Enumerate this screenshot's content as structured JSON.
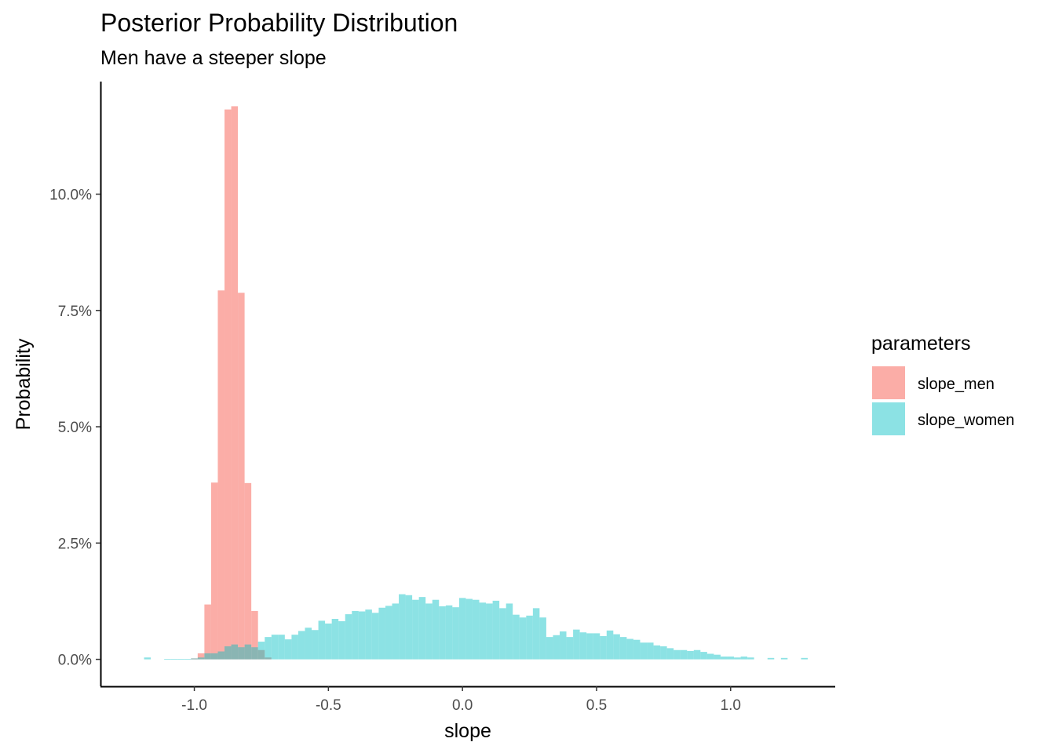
{
  "chart_data": {
    "type": "histogram",
    "title": "Posterior Probability Distribution",
    "subtitle": "Men have a steeper slope",
    "xlabel": "slope",
    "ylabel": "Probability",
    "xlim": [
      -1.35,
      1.39
    ],
    "ylim": [
      -0.0058,
      0.1242
    ],
    "x_ticks": [
      -1.0,
      -0.5,
      0.0,
      0.5,
      1.0
    ],
    "x_tick_labels": [
      "-1.0",
      "-0.5",
      "0.0",
      "0.5",
      "1.0"
    ],
    "y_ticks": [
      0.0,
      0.025,
      0.05,
      0.075,
      0.1
    ],
    "y_tick_labels": [
      "0.0%",
      "2.5%",
      "5.0%",
      "7.5%",
      "10.0%"
    ],
    "grid": false,
    "legend": {
      "title": "parameters",
      "position": "right",
      "items": [
        {
          "label": "slope_men",
          "color": "#F8766D"
        },
        {
          "label": "slope_women",
          "color": "#00BFC4"
        }
      ]
    },
    "series": [
      {
        "name": "slope_men",
        "color": "#F8766D",
        "bin_width": 0.0249,
        "x": [
          -1.0,
          -0.975,
          -0.95,
          -0.925,
          -0.9,
          -0.875,
          -0.85,
          -0.825,
          -0.8,
          -0.775,
          -0.75,
          -0.725
        ],
        "values": [
          0.0002,
          0.0013,
          0.0118,
          0.038,
          0.0793,
          0.1182,
          0.1189,
          0.0788,
          0.0379,
          0.0104,
          0.002,
          0.0004
        ]
      },
      {
        "name": "slope_women",
        "color": "#00BFC4",
        "bin_width": 0.0249,
        "x": [
          -1.2,
          -1.175,
          -1.15,
          -1.125,
          -1.1,
          -1.075,
          -1.05,
          -1.025,
          -1.0,
          -0.975,
          -0.95,
          -0.925,
          -0.9,
          -0.875,
          -0.85,
          -0.825,
          -0.8,
          -0.775,
          -0.75,
          -0.725,
          -0.7,
          -0.675,
          -0.65,
          -0.625,
          -0.6,
          -0.575,
          -0.55,
          -0.525,
          -0.5,
          -0.475,
          -0.45,
          -0.425,
          -0.4,
          -0.375,
          -0.35,
          -0.325,
          -0.3,
          -0.275,
          -0.25,
          -0.225,
          -0.2,
          -0.175,
          -0.15,
          -0.125,
          -0.1,
          -0.075,
          -0.05,
          -0.025,
          0.0,
          0.025,
          0.05,
          0.075,
          0.1,
          0.125,
          0.15,
          0.175,
          0.2,
          0.225,
          0.25,
          0.275,
          0.3,
          0.325,
          0.35,
          0.375,
          0.4,
          0.425,
          0.45,
          0.475,
          0.5,
          0.525,
          0.55,
          0.575,
          0.6,
          0.625,
          0.65,
          0.675,
          0.7,
          0.725,
          0.75,
          0.775,
          0.8,
          0.825,
          0.85,
          0.875,
          0.9,
          0.925,
          0.95,
          0.975,
          1.0,
          1.025,
          1.05,
          1.075,
          1.1,
          1.125,
          1.15,
          1.175,
          1.2,
          1.225,
          1.25,
          1.275
        ],
        "values": [
          0.0,
          0.0004,
          0.0,
          0.0,
          0.0001,
          0.0001,
          0.0001,
          0.0001,
          0.0002,
          0.0004,
          0.0013,
          0.0013,
          0.0017,
          0.0028,
          0.0032,
          0.0026,
          0.0032,
          0.0026,
          0.0038,
          0.0048,
          0.0053,
          0.0053,
          0.0043,
          0.0053,
          0.0061,
          0.0068,
          0.0063,
          0.0083,
          0.0077,
          0.0087,
          0.0082,
          0.0097,
          0.0104,
          0.0103,
          0.0107,
          0.01,
          0.0111,
          0.0115,
          0.012,
          0.014,
          0.0138,
          0.0128,
          0.0134,
          0.012,
          0.0128,
          0.0114,
          0.0116,
          0.0112,
          0.0132,
          0.013,
          0.0128,
          0.0122,
          0.012,
          0.0126,
          0.011,
          0.012,
          0.0096,
          0.009,
          0.0094,
          0.011,
          0.009,
          0.0048,
          0.0052,
          0.006,
          0.0048,
          0.0064,
          0.0058,
          0.0056,
          0.0056,
          0.005,
          0.0062,
          0.0054,
          0.0048,
          0.0044,
          0.0042,
          0.0036,
          0.0036,
          0.003,
          0.0028,
          0.0024,
          0.002,
          0.002,
          0.0018,
          0.002,
          0.0016,
          0.0012,
          0.001,
          0.0006,
          0.0006,
          0.0004,
          0.0006,
          0.0004,
          0.0,
          0.0,
          0.0003,
          0.0,
          0.0003,
          0.0,
          0.0,
          0.0003
        ]
      }
    ]
  }
}
